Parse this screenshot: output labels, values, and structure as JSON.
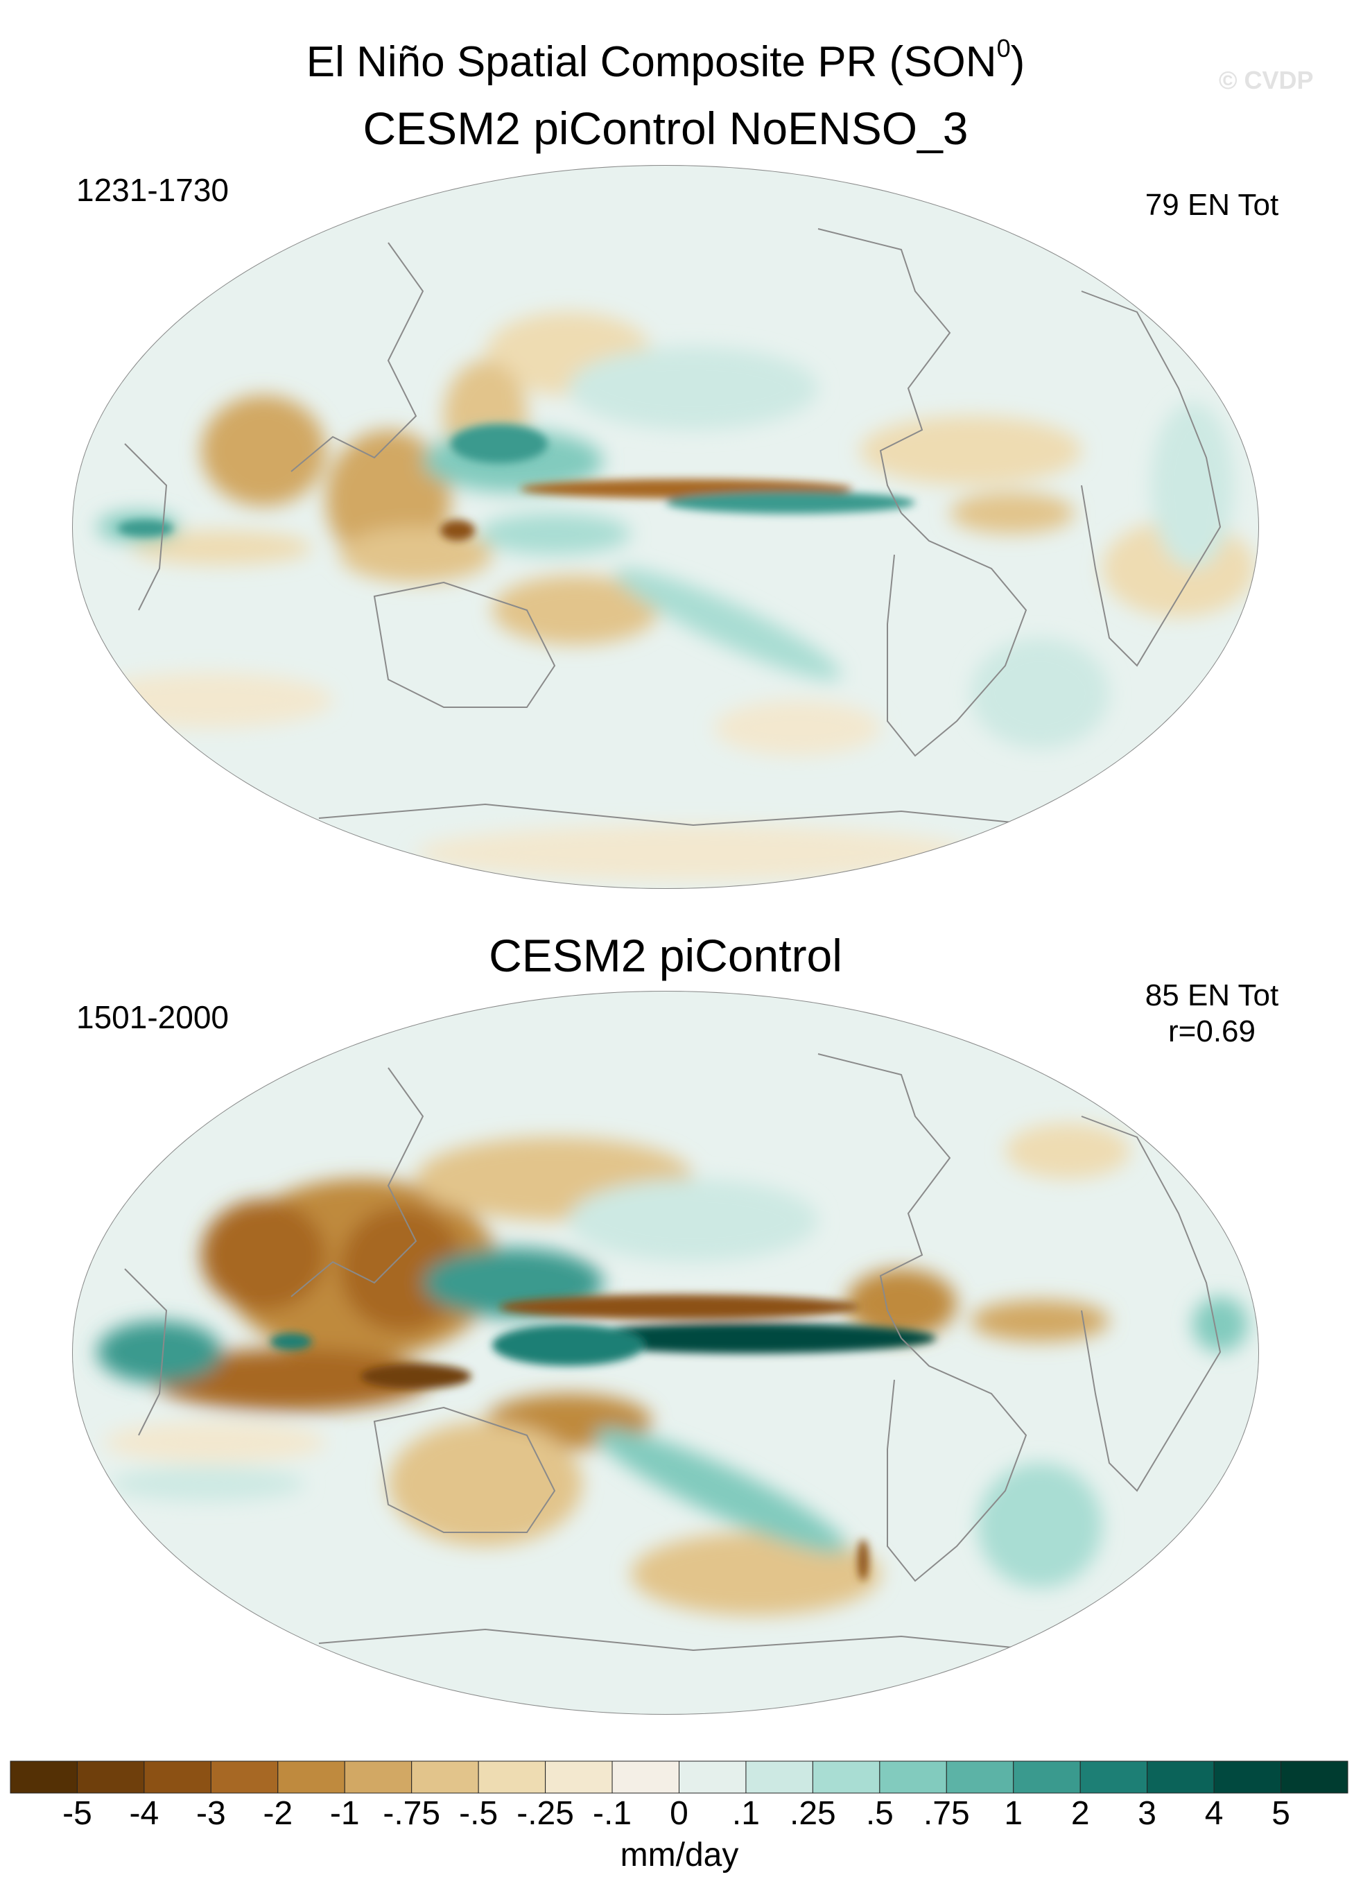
{
  "title": "El Niño Spatial Composite PR (SON",
  "title_sup": "0",
  "title_close": ")",
  "watermark": "© CVDP",
  "panels": [
    {
      "title": "CESM2 piControl NoENSO_3",
      "years": "1231-1730",
      "stat_line1": "79 EN Tot",
      "stat_line2": ""
    },
    {
      "title": "CESM2 piControl",
      "years": "1501-2000",
      "stat_line1": "85 EN Tot",
      "stat_line2": "r=0.69"
    }
  ],
  "colorbar": {
    "unit": "mm/day",
    "ticks": [
      "-5",
      "-4",
      "-3",
      "-2",
      "-1",
      "-.75",
      "-.5",
      "-.25",
      "-.1",
      "0",
      ".1",
      ".25",
      ".5",
      ".75",
      "1",
      "2",
      "3",
      "4",
      "5"
    ],
    "colors": [
      "#543005",
      "#6f3f0c",
      "#8c5114",
      "#a76824",
      "#bf8a3e",
      "#d2a864",
      "#e2c48b",
      "#eedcb2",
      "#f3e8cf",
      "#f4efe6",
      "#e5f0ec",
      "#cde9e3",
      "#a9ddd3",
      "#82cbbe",
      "#5cb3a6",
      "#3a9a8e",
      "#1d7f75",
      "#0b6359",
      "#01493f",
      "#003c30"
    ]
  }
}
